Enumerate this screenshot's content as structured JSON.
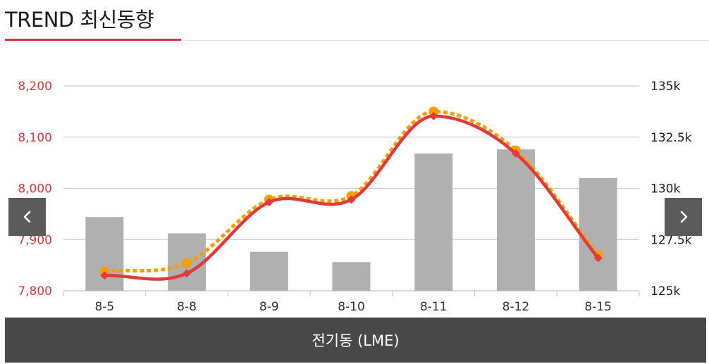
{
  "header": {
    "title": "TREND 최신동향"
  },
  "footer": {
    "label": "전기동 (LME)"
  },
  "navigation": {
    "prev_icon": "chevron-left-icon",
    "next_icon": "chevron-right-icon"
  },
  "colors": {
    "bars": "#b0b0b0",
    "price_line": "#e03a3a",
    "forecast_line": "#f5a000",
    "left_axis_text": "#d9373c",
    "right_axis_text": "#1a1a1a",
    "grid": "#c9ced6",
    "footer_bg": "#484848",
    "nav_bg": "#5b5b5b"
  },
  "chart_data": {
    "type": "bar",
    "categories": [
      "8-5",
      "8-8",
      "8-9",
      "8-10",
      "8-11",
      "8-12",
      "8-15"
    ],
    "left_axis": {
      "min": 7800,
      "max": 8200,
      "ticks": [
        "8,200",
        "8,100",
        "8,000",
        "7,900",
        "7,800"
      ]
    },
    "right_axis": {
      "min": 125,
      "max": 135,
      "ticks": [
        "135k",
        "132.5k",
        "130k",
        "127.5k",
        "125k"
      ]
    },
    "grid": true,
    "series": [
      {
        "type": "bar",
        "axis": "right",
        "values": [
          128.6,
          127.8,
          126.9,
          126.4,
          131.7,
          131.9,
          130.5
        ]
      },
      {
        "type": "line",
        "axis": "left",
        "style": "dotted",
        "values": [
          7838,
          7854,
          7978,
          7985,
          8150,
          8074,
          7870
        ]
      },
      {
        "type": "line",
        "axis": "left",
        "style": "solid",
        "values": [
          7830,
          7834,
          7973,
          7978,
          8141,
          8068,
          7864
        ]
      }
    ]
  }
}
